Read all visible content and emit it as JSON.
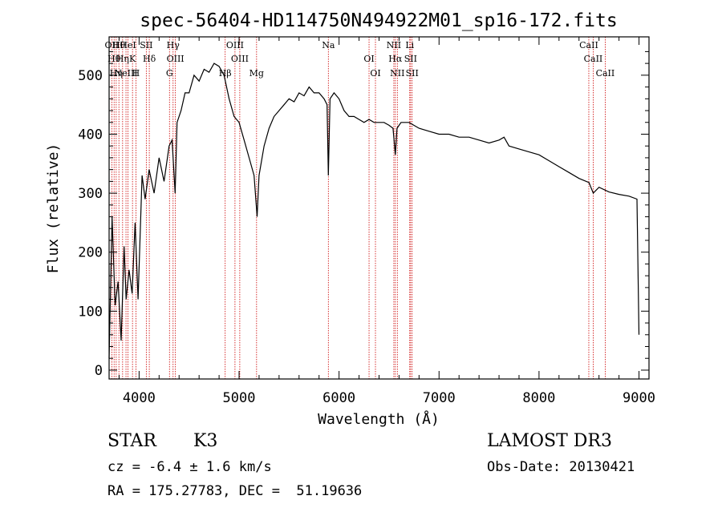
{
  "chart_data": {
    "type": "line",
    "title": "spec-56404-HD114750N494922M01_sp16-172.fits",
    "xlabel": "Wavelength (Å)",
    "ylabel": "Flux (relative)",
    "xlim": [
      3700,
      9100
    ],
    "ylim": [
      -15,
      565
    ],
    "x_ticks": [
      4000,
      5000,
      6000,
      7000,
      8000,
      9000
    ],
    "x_tick_labels": [
      "4000",
      "5000",
      "6000",
      "7000",
      "8000",
      "9000"
    ],
    "y_ticks": [
      0,
      100,
      200,
      300,
      400,
      500
    ],
    "y_tick_labels": [
      "0",
      "100",
      "200",
      "300",
      "400",
      "500"
    ],
    "grid": false,
    "series": [
      {
        "x": [
          3700,
          3730,
          3760,
          3790,
          3820,
          3850,
          3870,
          3900,
          3930,
          3960,
          3990,
          4030,
          4060,
          4100,
          4150,
          4200,
          4250,
          4300,
          4330,
          4360,
          4380,
          4420,
          4460,
          4500,
          4550,
          4600,
          4650,
          4700,
          4750,
          4800,
          4850,
          4900,
          4950,
          5000,
          5050,
          5100,
          5150,
          5180,
          5200,
          5250,
          5300,
          5350,
          5400,
          5450,
          5500,
          5550,
          5600,
          5650,
          5700,
          5750,
          5800,
          5850,
          5880,
          5893,
          5910,
          5950,
          6000,
          6050,
          6100,
          6150,
          6200,
          6250,
          6300,
          6350,
          6400,
          6450,
          6500,
          6540,
          6563,
          6580,
          6620,
          6700,
          6800,
          6900,
          7000,
          7100,
          7200,
          7300,
          7400,
          7500,
          7600,
          7650,
          7700,
          7800,
          7900,
          8000,
          8100,
          8200,
          8300,
          8400,
          8500,
          8542,
          8600,
          8700,
          8800,
          8900,
          8980,
          9000
        ],
        "y": [
          20,
          260,
          110,
          150,
          50,
          210,
          120,
          170,
          130,
          250,
          120,
          330,
          290,
          340,
          300,
          360,
          320,
          380,
          390,
          300,
          420,
          440,
          470,
          470,
          500,
          490,
          510,
          505,
          520,
          515,
          500,
          460,
          430,
          420,
          390,
          360,
          330,
          260,
          330,
          380,
          410,
          430,
          440,
          450,
          460,
          455,
          470,
          465,
          480,
          470,
          470,
          460,
          450,
          330,
          460,
          470,
          460,
          440,
          430,
          430,
          425,
          420,
          425,
          420,
          420,
          420,
          415,
          410,
          365,
          410,
          420,
          420,
          410,
          405,
          400,
          400,
          395,
          395,
          390,
          385,
          390,
          395,
          380,
          375,
          370,
          365,
          355,
          345,
          335,
          325,
          318,
          300,
          310,
          302,
          298,
          295,
          290,
          60
        ]
      }
    ],
    "line_markers": [
      {
        "x": 3727,
        "label": "OII"
      },
      {
        "x": 3750,
        "label": "Hθ"
      },
      {
        "x": 3771,
        "label": "Hη"
      },
      {
        "x": 3798,
        "label": "Hθ"
      },
      {
        "x": 3835,
        "label": "Hη"
      },
      {
        "x": 3869,
        "label": "NeIII"
      },
      {
        "x": 3889,
        "label": "HeI"
      },
      {
        "x": 3934,
        "label": "K"
      },
      {
        "x": 3968,
        "label": "H"
      },
      {
        "x": 4072,
        "label": "SII"
      },
      {
        "x": 4102,
        "label": "Hδ"
      },
      {
        "x": 4304,
        "label": "G"
      },
      {
        "x": 4340,
        "label": "Hγ"
      },
      {
        "x": 4363,
        "label": "OIII"
      },
      {
        "x": 4861,
        "label": "Hβ"
      },
      {
        "x": 4959,
        "label": "OIII"
      },
      {
        "x": 5007,
        "label": "OIII"
      },
      {
        "x": 5175,
        "label": "Mg"
      },
      {
        "x": 5893,
        "label": "Na"
      },
      {
        "x": 6300,
        "label": "OI"
      },
      {
        "x": 6364,
        "label": "OI"
      },
      {
        "x": 6548,
        "label": "NII"
      },
      {
        "x": 6563,
        "label": "Hα"
      },
      {
        "x": 6583,
        "label": "NII"
      },
      {
        "x": 6707,
        "label": "Li"
      },
      {
        "x": 6716,
        "label": "SII"
      },
      {
        "x": 6731,
        "label": "SII"
      },
      {
        "x": 8498,
        "label": "CaII"
      },
      {
        "x": 8542,
        "label": "CaII"
      },
      {
        "x": 8662,
        "label": "CaII"
      }
    ]
  },
  "info": {
    "class": "STAR",
    "subclass": "K3",
    "survey": "LAMOST DR3",
    "cz": "cz = -6.4 ± 1.6 km/s",
    "obs_date": "Obs-Date: 20130421",
    "coords": "RA = 175.27783, DEC =  51.19636"
  }
}
